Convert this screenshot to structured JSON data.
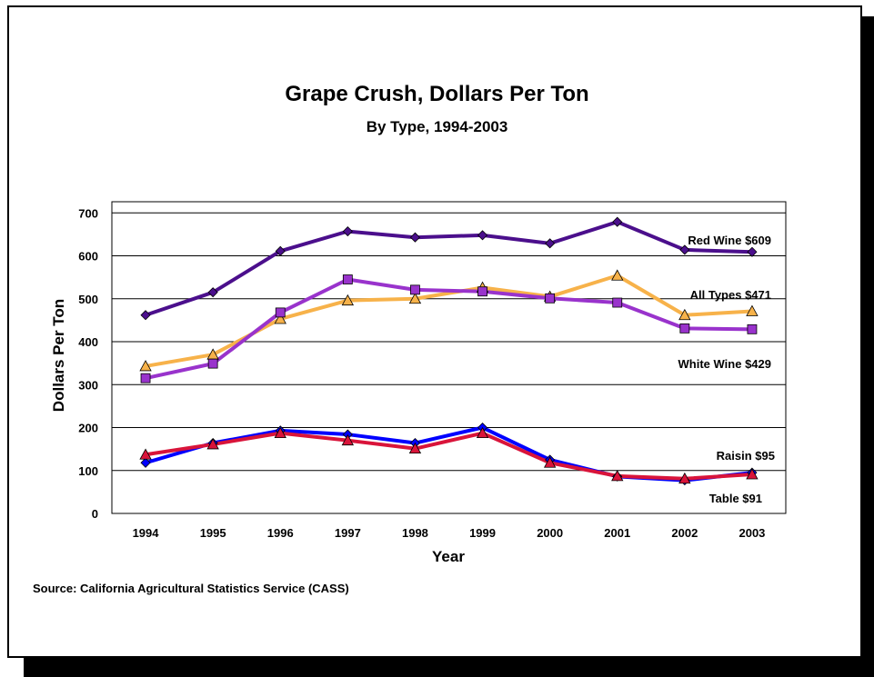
{
  "chart_data": {
    "type": "line",
    "title": "Grape Crush, Dollars Per Ton",
    "subtitle": "By Type, 1994-2003",
    "xlabel": "Year",
    "ylabel": "Dollars Per Ton",
    "ylim": [
      0,
      700
    ],
    "yticks": [
      0,
      100,
      200,
      300,
      400,
      500,
      600,
      700
    ],
    "grid": true,
    "x": [
      "1994",
      "1995",
      "1996",
      "1997",
      "1998",
      "1999",
      "2000",
      "2001",
      "2002",
      "2003"
    ],
    "series": [
      {
        "label": "Red Wine $609",
        "color": "#4b0f8c",
        "marker": "diamond",
        "values": [
          462,
          515,
          611,
          657,
          643,
          648,
          629,
          679,
          614,
          609
        ]
      },
      {
        "label": "All Types $471",
        "color": "#f7b24a",
        "marker": "triangle",
        "values": [
          343,
          370,
          453,
          496,
          500,
          526,
          505,
          554,
          462,
          471
        ]
      },
      {
        "label": "White Wine $429",
        "color": "#9933cc",
        "marker": "square",
        "values": [
          315,
          349,
          468,
          545,
          521,
          517,
          501,
          491,
          431,
          429
        ]
      },
      {
        "label": "Raisin $95",
        "color": "#0000ff",
        "marker": "diamond",
        "values": [
          118,
          164,
          193,
          184,
          164,
          200,
          125,
          86,
          77,
          95
        ]
      },
      {
        "label": "Table  $91",
        "color": "#d9143a",
        "marker": "triangle",
        "values": [
          137,
          161,
          187,
          170,
          151,
          187,
          118,
          87,
          81,
          91
        ]
      }
    ]
  },
  "source": "Source:  California Agricultural Statistics Service (CASS)"
}
